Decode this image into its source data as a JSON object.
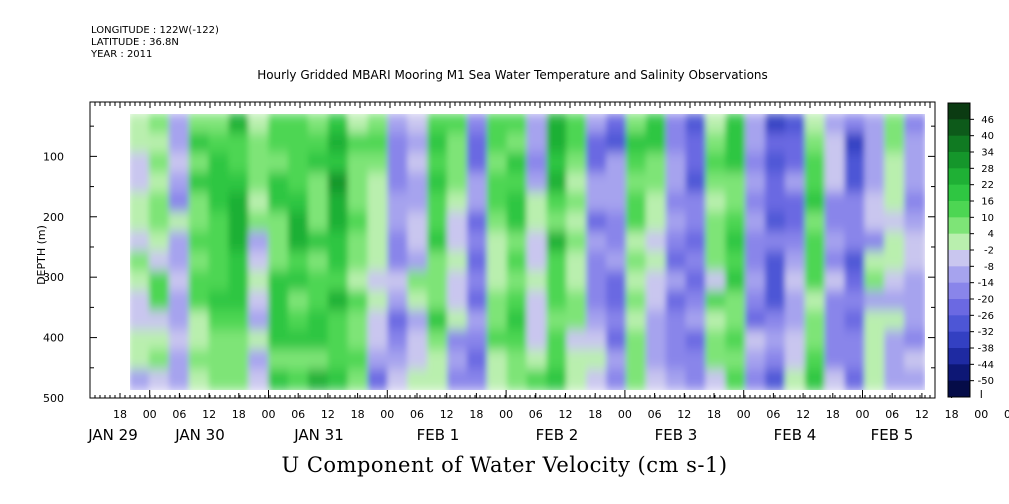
{
  "header": {
    "longitude": "LONGITUDE : 122W(-122)",
    "latitude": "LATITUDE : 36.8N",
    "year": "YEAR : 2011"
  },
  "chart_data": {
    "type": "heatmap",
    "title": "Hourly Gridded MBARI Mooring M1 Sea Water Temperature and Salinity Observations",
    "xlabel": "",
    "ylabel": "DEPTH (m)",
    "bottom_label": "U Component of Water Velocity (cm s-1)",
    "y_axis": {
      "range": [
        500,
        10
      ],
      "ticks": [
        100,
        200,
        300,
        400,
        500
      ],
      "inverted": true
    },
    "x_axis": {
      "hour_ticks": [
        "18",
        "00",
        "06",
        "12",
        "18",
        "00",
        "06",
        "12",
        "18",
        "00",
        "06",
        "12",
        "18",
        "00",
        "06",
        "12",
        "18",
        "00",
        "06",
        "12",
        "18",
        "00",
        "06",
        "12",
        "18",
        "00",
        "06",
        "12",
        "18",
        "00",
        "06",
        "12",
        "18",
        "00",
        "06",
        "12"
      ],
      "date_labels": [
        "JAN 29",
        "JAN 30",
        "JAN 31",
        "FEB  1",
        "FEB  2",
        "FEB  3",
        "FEB  4",
        "FEB  5"
      ]
    },
    "colorbar": {
      "labels": [
        "46",
        "40",
        "34",
        "28",
        "22",
        "16",
        "10",
        "4",
        "-2",
        "-8",
        "-14",
        "-20",
        "-26",
        "-32",
        "-38",
        "-44",
        "-50"
      ],
      "colors": [
        "#0b3b12",
        "#0d5a1a",
        "#107a22",
        "#15962b",
        "#1fb035",
        "#2fc642",
        "#4dd653",
        "#7ee477",
        "#b9efae",
        "#c9c6ef",
        "#a6a3ee",
        "#8985ea",
        "#6b69e2",
        "#4d56d6",
        "#3340c2",
        "#1e2aa2",
        "#0d1775",
        "#050c48"
      ]
    },
    "columns": [
      {
        "surface": 6,
        "deep": 0
      },
      {
        "surface": 10,
        "deep": 4
      },
      {
        "surface": -6,
        "deep": -4
      },
      {
        "surface": 14,
        "deep": 10
      },
      {
        "surface": 18,
        "deep": 12
      },
      {
        "surface": 20,
        "deep": 14
      },
      {
        "surface": 10,
        "deep": -6
      },
      {
        "surface": 14,
        "deep": 16
      },
      {
        "surface": 22,
        "deep": 18
      },
      {
        "surface": 16,
        "deep": 20
      },
      {
        "surface": 24,
        "deep": 22
      },
      {
        "surface": 12,
        "deep": 6
      },
      {
        "surface": 8,
        "deep": -10
      },
      {
        "surface": -14,
        "deep": -8
      },
      {
        "surface": -4,
        "deep": 4
      },
      {
        "surface": 18,
        "deep": 10
      },
      {
        "surface": 14,
        "deep": -10
      },
      {
        "surface": -12,
        "deep": -14
      },
      {
        "surface": 10,
        "deep": 8
      },
      {
        "surface": 16,
        "deep": 14
      },
      {
        "surface": -8,
        "deep": 6
      },
      {
        "surface": 20,
        "deep": 16
      },
      {
        "surface": 12,
        "deep": 4
      },
      {
        "surface": -10,
        "deep": -6
      },
      {
        "surface": -16,
        "deep": -12
      },
      {
        "surface": 14,
        "deep": 10
      },
      {
        "surface": 18,
        "deep": -8
      },
      {
        "surface": -12,
        "deep": -14
      },
      {
        "surface": -20,
        "deep": -10
      },
      {
        "surface": 12,
        "deep": 6
      },
      {
        "surface": 16,
        "deep": 12
      },
      {
        "surface": -10,
        "deep": -8
      },
      {
        "surface": -24,
        "deep": -14
      },
      {
        "surface": -18,
        "deep": 4
      },
      {
        "surface": 10,
        "deep": 14
      },
      {
        "surface": -8,
        "deep": -10
      },
      {
        "surface": -22,
        "deep": -16
      },
      {
        "surface": -14,
        "deep": 8
      },
      {
        "surface": 12,
        "deep": -4
      },
      {
        "surface": -6,
        "deep": -10
      }
    ]
  }
}
